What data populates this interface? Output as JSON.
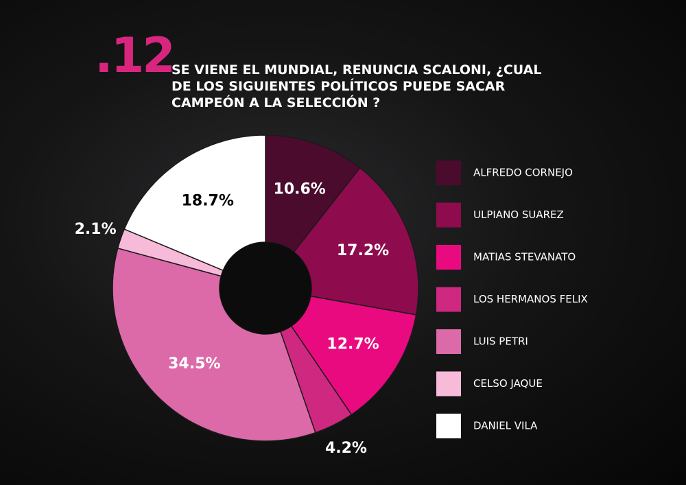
{
  "chart_data": {
    "type": "donut",
    "number": ".12",
    "title": "SE VIENE EL MUNDIAL, RENUNCIA SCALONI, ¿CUAL DE LOS SIGUIENTES POLÍTICOS PUEDE SACAR CAMPEÓN A LA SELECCIÓN ?",
    "categories": [
      "ALFREDO CORNEJO",
      "ULPIANO SUAREZ",
      "MATIAS STEVANATO",
      "LOS HERMANOS FELIX",
      "LUIS PETRI",
      "CELSO JAQUE",
      "DANIEL VILA"
    ],
    "values": [
      10.6,
      17.2,
      12.7,
      4.2,
      34.5,
      2.1,
      18.7
    ],
    "value_labels": [
      "10.6%",
      "17.2%",
      "12.7%",
      "4.2%",
      "34.5%",
      "2.1%",
      "18.7%"
    ],
    "colors": [
      "#4b0b2c",
      "#8e0b4d",
      "#ea0a80",
      "#cf2880",
      "#dc6aa8",
      "#f8bad9",
      "#ffffff"
    ],
    "legend": "right"
  }
}
